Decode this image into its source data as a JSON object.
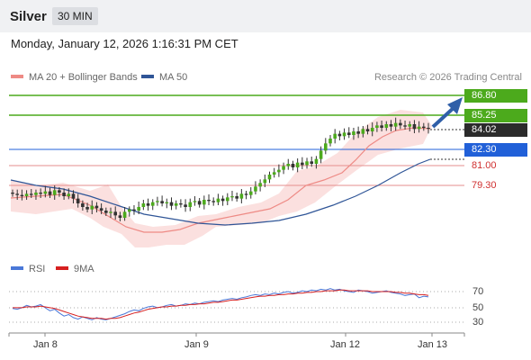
{
  "header": {
    "title": "Silver",
    "timeframe": "30 MIN"
  },
  "datetime": "Monday, January 12, 2026 1:16:31 PM CET",
  "legend": {
    "ma20_label": "MA 20 + Bollinger Bands",
    "ma50_label": "MA 50",
    "ma20_color": "#ee8a85",
    "ma50_color": "#2f5597",
    "research": "Research © 2026 Trading Central"
  },
  "levels": {
    "r2": "86.80",
    "r1": "85.25",
    "last": "84.02",
    "pivot": "82.30",
    "s1": "81.00",
    "s2": "79.30"
  },
  "colors": {
    "resistance": "#4caa1c",
    "pivot": "#2160d8",
    "support": "#d03030",
    "arrow": "#2f5fa8"
  },
  "rsi": {
    "rsi_label": "RSI",
    "ma_label": "9MA",
    "rsi_color": "#4a78d8",
    "ma_color": "#d62020",
    "ticks": [
      "70",
      "50",
      "30"
    ]
  },
  "x_axis": {
    "labels": [
      "Jan 8",
      "Jan 9",
      "Jan 12",
      "Jan 13"
    ]
  },
  "chart_data": {
    "type": "candlestick",
    "instrument": "Silver",
    "timeframe": "30 MIN",
    "y_levels": {
      "r2": 86.8,
      "r1": 85.25,
      "last": 84.02,
      "pivot": 82.3,
      "s1": 81.0,
      "s2": 79.3
    },
    "close_series": [
      78.6,
      78.5,
      78.4,
      78.6,
      78.5,
      78.7,
      78.6,
      78.8,
      78.5,
      78.9,
      78.7,
      78.4,
      78.6,
      78.2,
      77.8,
      77.5,
      77.3,
      77.6,
      77.4,
      77.2,
      77.0,
      77.1,
      76.8,
      76.6,
      77.1,
      77.3,
      77.2,
      77.5,
      77.8,
      77.6,
      77.9,
      78.0,
      77.8,
      77.9,
      77.6,
      77.8,
      77.7,
      77.5,
      77.9,
      78.0,
      77.7,
      78.1,
      78.0,
      77.9,
      78.2,
      78.0,
      78.3,
      78.4,
      78.2,
      78.6,
      78.5,
      78.8,
      79.2,
      79.5,
      79.8,
      80.2,
      80.4,
      80.6,
      80.9,
      81.1,
      80.8,
      81.2,
      81.0,
      81.3,
      81.1,
      81.5,
      82.2,
      82.8,
      83.2,
      83.6,
      83.4,
      83.7,
      83.5,
      83.8,
      83.6,
      84.0,
      83.8,
      84.1,
      84.3,
      84.1,
      84.4,
      84.2,
      84.5,
      84.3,
      84.2,
      84.4,
      84.0,
      84.2,
      84.1,
      84.02
    ],
    "rsi_values": [
      48,
      47,
      49,
      52,
      50,
      51,
      53,
      49,
      45,
      47,
      42,
      38,
      40,
      36,
      34,
      37,
      35,
      33,
      36,
      34,
      33,
      35,
      37,
      39,
      41,
      44,
      46,
      45,
      48,
      50,
      51,
      49,
      50,
      52,
      53,
      51,
      52,
      54,
      53,
      55,
      54,
      56,
      57,
      58,
      57,
      59,
      60,
      61,
      60,
      62,
      63,
      65,
      66,
      65,
      67,
      66,
      68,
      67,
      69,
      70,
      68,
      69,
      71,
      70,
      72,
      71,
      73,
      72,
      74,
      72,
      73,
      71,
      70,
      69,
      72,
      71,
      70,
      68,
      69,
      70,
      71,
      69,
      68,
      67,
      65,
      66,
      67,
      62,
      64,
      63
    ],
    "rsi_ma9_values": [
      49,
      49,
      49,
      50,
      50,
      50,
      51,
      50,
      49,
      48,
      46,
      44,
      42,
      40,
      38,
      37,
      36,
      35,
      35,
      35,
      34,
      35,
      35,
      36,
      38,
      40,
      42,
      43,
      45,
      47,
      48,
      49,
      50,
      50,
      51,
      51,
      52,
      52,
      53,
      53,
      54,
      54,
      55,
      56,
      56,
      57,
      58,
      59,
      59,
      60,
      61,
      62,
      63,
      64,
      64,
      65,
      65,
      66,
      66,
      67,
      67,
      68,
      68,
      69,
      69,
      70,
      70,
      71,
      71,
      71,
      72,
      72,
      71,
      71,
      71,
      71,
      71,
      70,
      70,
      70,
      70,
      70,
      69,
      69,
      68,
      68,
      67,
      66,
      66,
      65
    ]
  }
}
